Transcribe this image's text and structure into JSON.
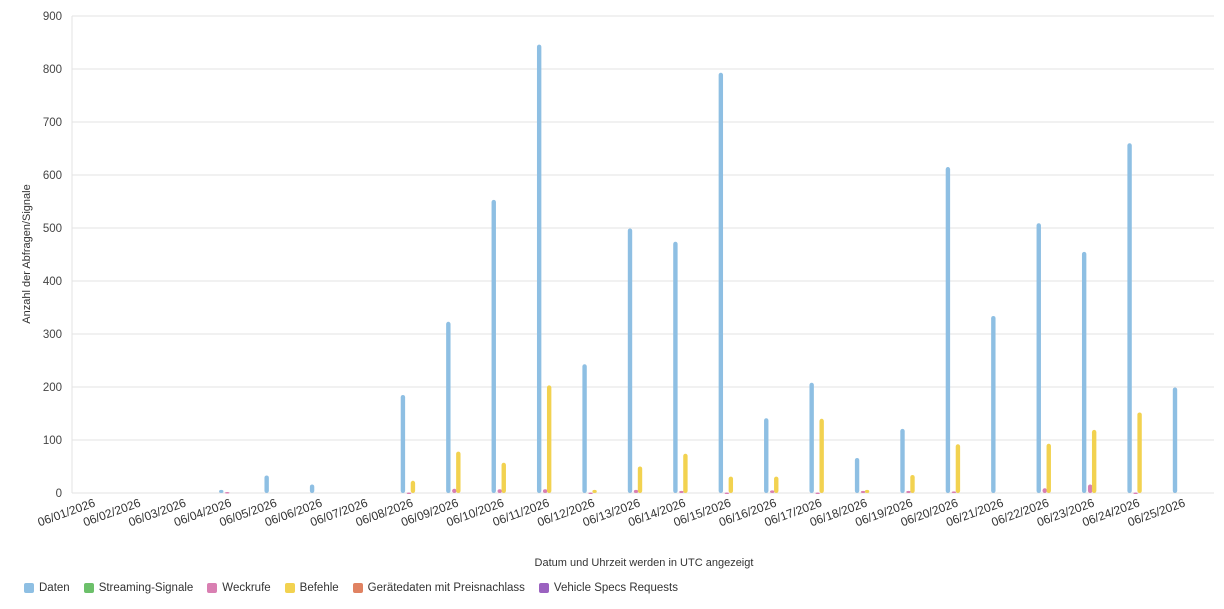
{
  "chart_data": {
    "type": "bar",
    "xlabel": "Datum und Uhrzeit werden in UTC angezeigt",
    "ylabel": "Anzahl der Abfragen/Signale",
    "ylim": [
      0,
      900
    ],
    "yticks": [
      0,
      100,
      200,
      300,
      400,
      500,
      600,
      700,
      800,
      900
    ],
    "grid": true,
    "legend_position": "bottom-left",
    "categories": [
      "06/01/2026",
      "06/02/2026",
      "06/03/2026",
      "06/04/2026",
      "06/05/2026",
      "06/06/2026",
      "06/07/2026",
      "06/08/2026",
      "06/09/2026",
      "06/10/2026",
      "06/11/2026",
      "06/12/2026",
      "06/13/2026",
      "06/14/2026",
      "06/15/2026",
      "06/16/2026",
      "06/17/2026",
      "06/18/2026",
      "06/19/2026",
      "06/20/2026",
      "06/21/2026",
      "06/22/2026",
      "06/23/2026",
      "06/24/2026",
      "06/25/2026"
    ],
    "series": [
      {
        "name": "Daten",
        "color": "#8ebfe3",
        "values": [
          0,
          0,
          0,
          6,
          33,
          16,
          0,
          185,
          323,
          553,
          846,
          243,
          499,
          474,
          793,
          141,
          208,
          66,
          121,
          615,
          334,
          509,
          455,
          660,
          199
        ]
      },
      {
        "name": "Streaming-Signale",
        "color": "#6cc06a",
        "values": [
          0,
          0,
          0,
          0,
          0,
          0,
          0,
          0,
          0,
          0,
          0,
          0,
          0,
          0,
          0,
          0,
          0,
          0,
          0,
          0,
          0,
          0,
          0,
          0,
          0
        ]
      },
      {
        "name": "Weckrufe",
        "color": "#d97fb2",
        "values": [
          0,
          0,
          0,
          2,
          0,
          0,
          0,
          1,
          8,
          7,
          7,
          1,
          6,
          4,
          1,
          5,
          1,
          4,
          4,
          3,
          0,
          9,
          16,
          1,
          0
        ]
      },
      {
        "name": "Befehle",
        "color": "#f2d250",
        "values": [
          0,
          0,
          0,
          0,
          0,
          0,
          0,
          23,
          78,
          57,
          203,
          6,
          50,
          74,
          31,
          31,
          140,
          6,
          34,
          92,
          0,
          93,
          119,
          152,
          0
        ]
      },
      {
        "name": "Gerätedaten mit Preisnachlass",
        "color": "#e08262",
        "values": [
          0,
          0,
          0,
          0,
          0,
          0,
          0,
          0,
          0,
          0,
          0,
          0,
          0,
          0,
          0,
          0,
          0,
          0,
          0,
          0,
          0,
          0,
          0,
          0,
          0
        ]
      },
      {
        "name": "Vehicle Specs Requests",
        "color": "#9b62c0",
        "values": [
          0,
          0,
          0,
          0,
          0,
          0,
          0,
          0,
          0,
          0,
          0,
          0,
          0,
          0,
          0,
          0,
          0,
          0,
          0,
          0,
          0,
          0,
          0,
          0,
          0
        ]
      }
    ]
  }
}
